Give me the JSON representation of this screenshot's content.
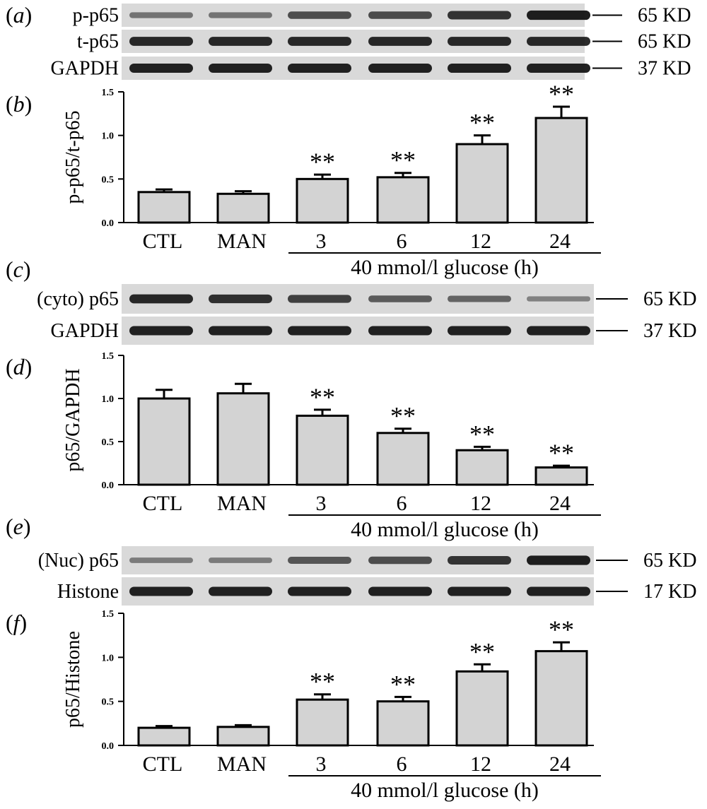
{
  "colors": {
    "bar_fill": "#d3d3d3",
    "ink": "#000000",
    "blot_bg": "#d9d9d9",
    "band": "#111111"
  },
  "significance_mark": "**",
  "treatment_label": "40 mmol/l glucose (h)",
  "blots": [
    {
      "panel": "(a)",
      "rows": [
        {
          "label": "p-p65",
          "marker": "65 KD",
          "intensities": [
            0.35,
            0.35,
            0.6,
            0.62,
            0.78,
            0.92
          ]
        },
        {
          "label": "t-p65",
          "marker": "65 KD",
          "intensities": [
            0.85,
            0.85,
            0.85,
            0.85,
            0.85,
            0.85
          ]
        },
        {
          "label": "GAPDH",
          "marker": "37 KD",
          "intensities": [
            0.9,
            0.9,
            0.9,
            0.9,
            0.9,
            0.9
          ]
        }
      ]
    },
    {
      "panel": "(c)",
      "rows": [
        {
          "label": "(cyto) p65",
          "marker": "65 KD",
          "intensities": [
            0.85,
            0.8,
            0.7,
            0.5,
            0.45,
            0.25
          ]
        },
        {
          "label": "GAPDH",
          "marker": "37 KD",
          "intensities": [
            0.9,
            0.9,
            0.9,
            0.9,
            0.9,
            0.9
          ]
        }
      ]
    },
    {
      "panel": "(e)",
      "rows": [
        {
          "label": "(Nuc) p65",
          "marker": "65 KD",
          "intensities": [
            0.3,
            0.3,
            0.55,
            0.6,
            0.78,
            0.92
          ]
        },
        {
          "label": "Histone",
          "marker": "17 KD",
          "intensities": [
            0.9,
            0.9,
            0.9,
            0.9,
            0.9,
            0.9
          ]
        }
      ]
    }
  ],
  "chart_data": [
    {
      "panel": "(b)",
      "type": "bar",
      "categories": [
        "CTL",
        "MAN",
        "3",
        "6",
        "12",
        "24"
      ],
      "values": [
        0.35,
        0.33,
        0.5,
        0.52,
        0.9,
        1.2
      ],
      "errors": [
        0.03,
        0.03,
        0.05,
        0.05,
        0.1,
        0.13
      ],
      "significant": [
        false,
        false,
        true,
        true,
        true,
        true
      ],
      "ylabel": "p-p65/t-p65",
      "xlabel": "40 mmol/l glucose (h)",
      "ylim": [
        0,
        1.5
      ],
      "yticks": [
        "0.0",
        "0.5",
        "1.0",
        "1.5"
      ],
      "ytick_values": [
        0,
        0.5,
        1.0,
        1.5
      ]
    },
    {
      "panel": "(d)",
      "type": "bar",
      "categories": [
        "CTL",
        "MAN",
        "3",
        "6",
        "12",
        "24"
      ],
      "values": [
        1.0,
        1.06,
        0.8,
        0.6,
        0.4,
        0.2
      ],
      "errors": [
        0.1,
        0.11,
        0.07,
        0.05,
        0.04,
        0.02
      ],
      "significant": [
        false,
        false,
        true,
        true,
        true,
        true
      ],
      "ylabel": "p65/GAPDH",
      "xlabel": "40 mmol/l glucose (h)",
      "ylim": [
        0,
        1.5
      ],
      "yticks": [
        "0.0",
        "0.5",
        "1.0",
        "1.5"
      ],
      "ytick_values": [
        0,
        0.5,
        1.0,
        1.5
      ]
    },
    {
      "panel": "(f)",
      "type": "bar",
      "categories": [
        "CTL",
        "MAN",
        "3",
        "6",
        "12",
        "24"
      ],
      "values": [
        0.2,
        0.21,
        0.52,
        0.5,
        0.84,
        1.07
      ],
      "errors": [
        0.02,
        0.02,
        0.06,
        0.05,
        0.08,
        0.1
      ],
      "significant": [
        false,
        false,
        true,
        true,
        true,
        true
      ],
      "ylabel": "p65/Histone",
      "xlabel": "40 mmol/l glucose (h)",
      "ylim": [
        0,
        1.5
      ],
      "yticks": [
        "0.0",
        "0.5",
        "1.0",
        "1.5"
      ],
      "ytick_values": [
        0,
        0.5,
        1.0,
        1.5
      ]
    }
  ]
}
